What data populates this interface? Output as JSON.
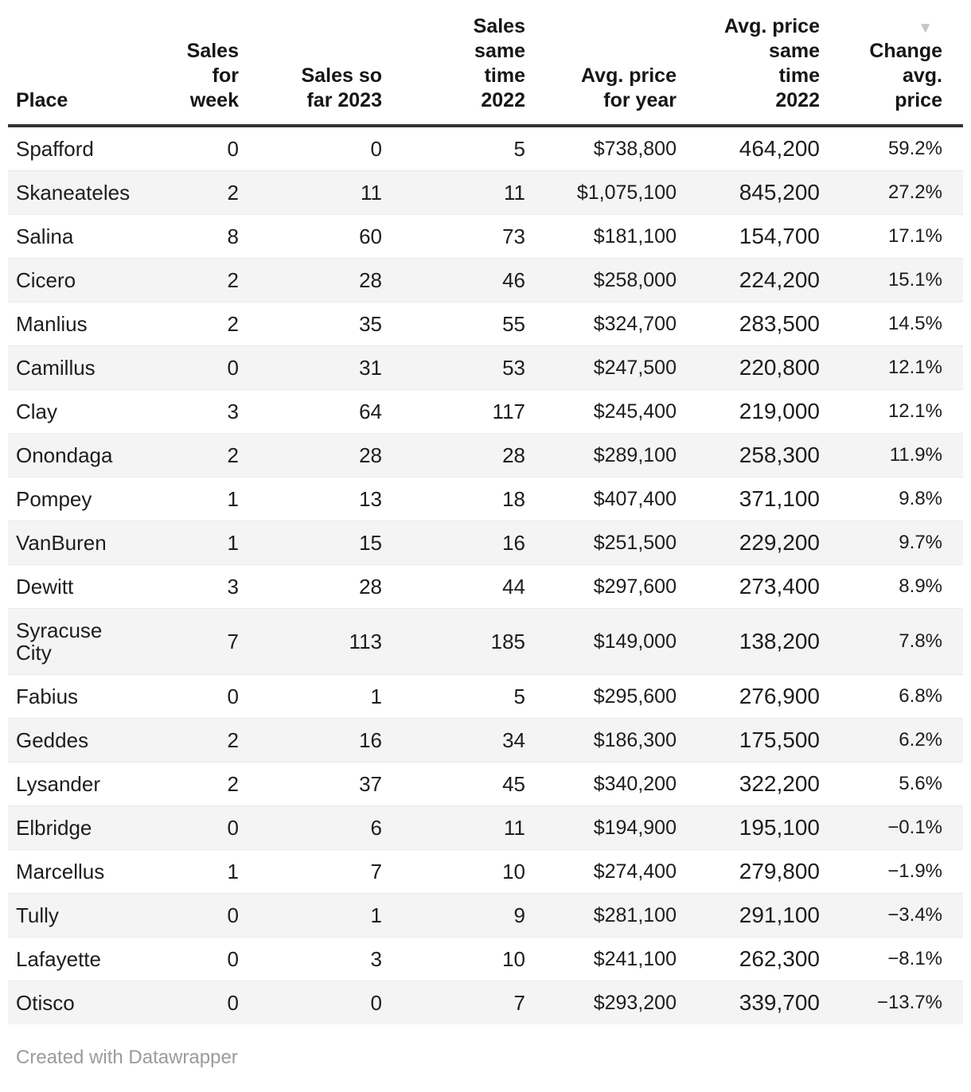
{
  "chart_data": {
    "type": "table",
    "sorted_by": "Change avg. price",
    "sort_direction": "descending",
    "columns": [
      {
        "id": "place",
        "label": "Place",
        "label_lines": [
          "Place"
        ],
        "align": "left"
      },
      {
        "id": "sales_for_week",
        "label": "Sales for week",
        "label_lines": [
          "Sales",
          "for",
          "week"
        ],
        "align": "right"
      },
      {
        "id": "sales_so_far_2023",
        "label": "Sales so far 2023",
        "label_lines": [
          "Sales so",
          "far 2023"
        ],
        "align": "right"
      },
      {
        "id": "sales_same_time_2022",
        "label": "Sales same time 2022",
        "label_lines": [
          "Sales",
          "same",
          "time",
          "2022"
        ],
        "align": "right"
      },
      {
        "id": "avg_price_for_year",
        "label": "Avg. price for year",
        "label_lines": [
          "Avg. price",
          "for year"
        ],
        "align": "right"
      },
      {
        "id": "avg_price_same_time_2022",
        "label": "Avg. price same time 2022",
        "label_lines": [
          "Avg. price",
          "same",
          "time",
          "2022"
        ],
        "align": "right"
      },
      {
        "id": "change_avg_price",
        "label": "Change avg. price",
        "label_lines": [
          "Change",
          "avg.",
          "price"
        ],
        "align": "right",
        "sort_indicator": "descending"
      }
    ],
    "rows": [
      [
        "Spafford",
        "0",
        "0",
        "5",
        "$738,800",
        "464,200",
        "59.2%"
      ],
      [
        "Skaneateles",
        "2",
        "11",
        "11",
        "$1,075,100",
        "845,200",
        "27.2%"
      ],
      [
        "Salina",
        "8",
        "60",
        "73",
        "$181,100",
        "154,700",
        "17.1%"
      ],
      [
        "Cicero",
        "2",
        "28",
        "46",
        "$258,000",
        "224,200",
        "15.1%"
      ],
      [
        "Manlius",
        "2",
        "35",
        "55",
        "$324,700",
        "283,500",
        "14.5%"
      ],
      [
        "Camillus",
        "0",
        "31",
        "53",
        "$247,500",
        "220,800",
        "12.1%"
      ],
      [
        "Clay",
        "3",
        "64",
        "117",
        "$245,400",
        "219,000",
        "12.1%"
      ],
      [
        "Onondaga",
        "2",
        "28",
        "28",
        "$289,100",
        "258,300",
        "11.9%"
      ],
      [
        "Pompey",
        "1",
        "13",
        "18",
        "$407,400",
        "371,100",
        "9.8%"
      ],
      [
        "VanBuren",
        "1",
        "15",
        "16",
        "$251,500",
        "229,200",
        "9.7%"
      ],
      [
        "Dewitt",
        "3",
        "28",
        "44",
        "$297,600",
        "273,400",
        "8.9%"
      ],
      [
        "Syracuse City",
        "7",
        "113",
        "185",
        "$149,000",
        "138,200",
        "7.8%"
      ],
      [
        "Fabius",
        "0",
        "1",
        "5",
        "$295,600",
        "276,900",
        "6.8%"
      ],
      [
        "Geddes",
        "2",
        "16",
        "34",
        "$186,300",
        "175,500",
        "6.2%"
      ],
      [
        "Lysander",
        "2",
        "37",
        "45",
        "$340,200",
        "322,200",
        "5.6%"
      ],
      [
        "Elbridge",
        "0",
        "6",
        "11",
        "$194,900",
        "195,100",
        "−0.1%"
      ],
      [
        "Marcellus",
        "1",
        "7",
        "10",
        "$274,400",
        "279,800",
        "−1.9%"
      ],
      [
        "Tully",
        "0",
        "1",
        "9",
        "$281,100",
        "291,100",
        "−3.4%"
      ],
      [
        "Lafayette",
        "0",
        "3",
        "10",
        "$241,100",
        "262,300",
        "−8.1%"
      ],
      [
        "Otisco",
        "0",
        "0",
        "7",
        "$293,200",
        "339,700",
        "−13.7%"
      ]
    ]
  },
  "icons": {
    "sort_descending": "▼"
  },
  "colors": {
    "header_border": "#333333",
    "row_stripe": "#f4f4f4",
    "row_border": "#e9e9e9",
    "text": "#1d1d1d",
    "sort_arrow": "#c6c6c6",
    "footer_text": "#9b9b9b"
  },
  "footer": {
    "credit": "Created with Datawrapper"
  }
}
